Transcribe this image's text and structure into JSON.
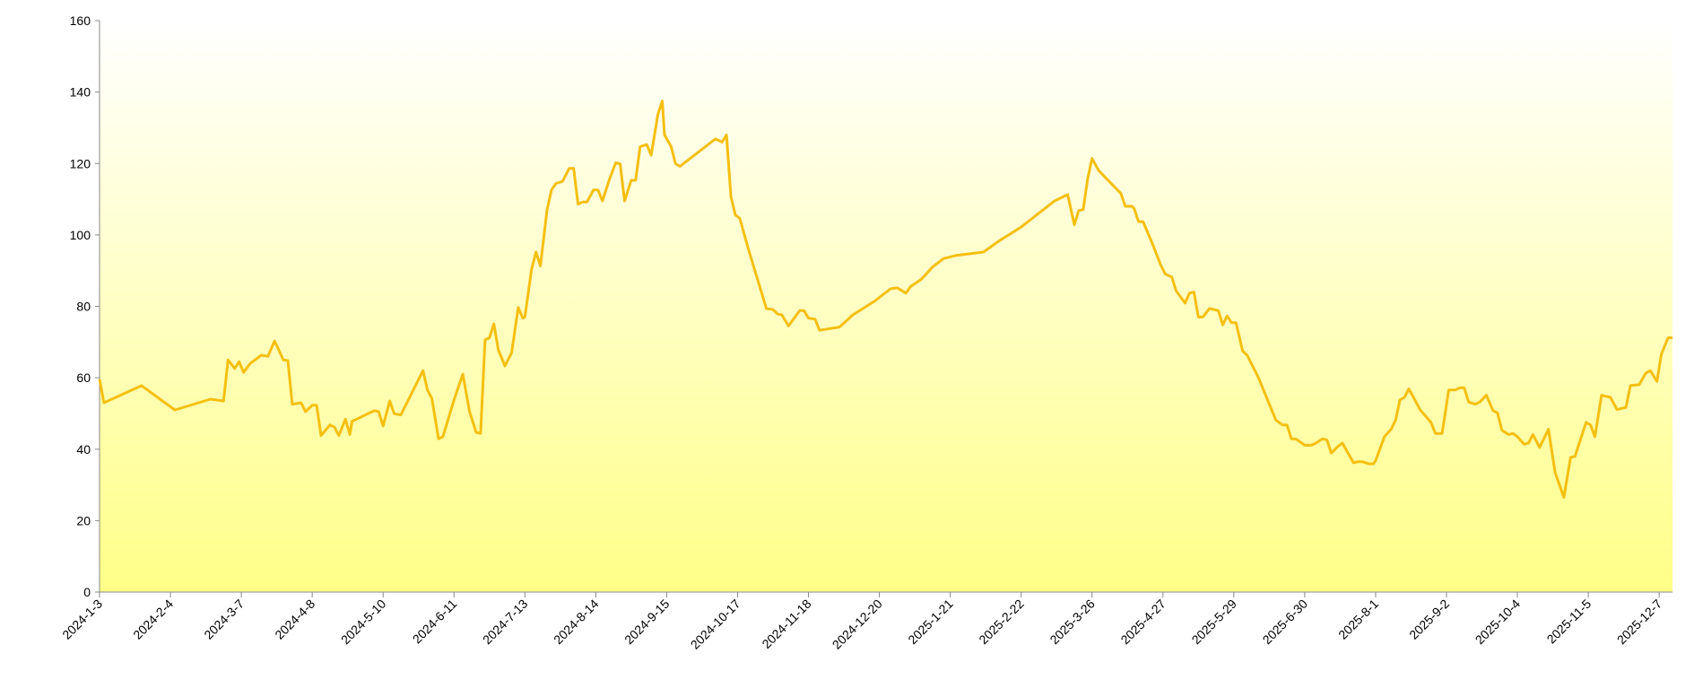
{
  "chart_data": {
    "type": "line",
    "color": "#f5bf10",
    "x": [
      "2024-1-3",
      "2024-1-5",
      "2024-1-22",
      "2024-2-6",
      "2024-2-22",
      "2024-2-28",
      "2024-3-1",
      "2024-3-4",
      "2024-3-6",
      "2024-3-8",
      "2024-3-11",
      "2024-3-16",
      "2024-3-19",
      "2024-3-22",
      "2024-3-26",
      "2024-3-28",
      "2024-3-30",
      "2024-4-3",
      "2024-4-5",
      "2024-4-8",
      "2024-4-10",
      "2024-4-12",
      "2024-4-16",
      "2024-4-18",
      "2024-4-20",
      "2024-4-23",
      "2024-4-25",
      "2024-4-26",
      "2024-5-6",
      "2024-5-8",
      "2024-5-10",
      "2024-5-13",
      "2024-5-15",
      "2024-5-18",
      "2024-5-28",
      "2024-5-30",
      "2024-6-1",
      "2024-6-4",
      "2024-6-6",
      "2024-6-11",
      "2024-6-15",
      "2024-6-18",
      "2024-6-21",
      "2024-6-23",
      "2024-6-25",
      "2024-6-27",
      "2024-6-29",
      "2024-7-1",
      "2024-7-4",
      "2024-7-7",
      "2024-7-10",
      "2024-7-12",
      "2024-7-13",
      "2024-7-16",
      "2024-7-18",
      "2024-7-20",
      "2024-7-23",
      "2024-7-25",
      "2024-7-27",
      "2024-7-30",
      "2024-8-2",
      "2024-8-4",
      "2024-8-6",
      "2024-8-8",
      "2024-8-10",
      "2024-8-13",
      "2024-8-15",
      "2024-8-17",
      "2024-8-20",
      "2024-8-23",
      "2024-8-25",
      "2024-8-27",
      "2024-8-30",
      "2024-9-1",
      "2024-9-3",
      "2024-9-6",
      "2024-9-8",
      "2024-9-11",
      "2024-9-13",
      "2024-9-14",
      "2024-9-17",
      "2024-9-19",
      "2024-9-21",
      "2024-10-7",
      "2024-10-10",
      "2024-10-12",
      "2024-10-14",
      "2024-10-16",
      "2024-10-18",
      "2024-10-22",
      "2024-10-30",
      "2024-11-2",
      "2024-11-4",
      "2024-11-6",
      "2024-11-9",
      "2024-11-14",
      "2024-11-16",
      "2024-11-18",
      "2024-11-21",
      "2024-11-23",
      "2024-12-2",
      "2024-12-8",
      "2024-12-18",
      "2024-12-25",
      "2024-12-28",
      "2025-1-1",
      "2025-1-3",
      "2025-1-8",
      "2025-1-13",
      "2025-1-18",
      "2025-1-24",
      "2025-2-5",
      "2025-2-12",
      "2025-2-22",
      "2025-3-1",
      "2025-3-9",
      "2025-3-15",
      "2025-3-18",
      "2025-3-20",
      "2025-3-22",
      "2025-3-24",
      "2025-3-26",
      "2025-3-29",
      "2025-4-8",
      "2025-4-10",
      "2025-4-13",
      "2025-4-14",
      "2025-4-16",
      "2025-4-18",
      "2025-4-22",
      "2025-4-26",
      "2025-4-28",
      "2025-5-1",
      "2025-5-3",
      "2025-5-7",
      "2025-5-9",
      "2025-5-11",
      "2025-5-13",
      "2025-5-15",
      "2025-5-18",
      "2025-5-22",
      "2025-5-24",
      "2025-5-26",
      "2025-5-28",
      "2025-5-30",
      "2025-6-2",
      "2025-6-4",
      "2025-6-9",
      "2025-6-17",
      "2025-6-20",
      "2025-6-22",
      "2025-6-24",
      "2025-6-26",
      "2025-6-30",
      "2025-7-3",
      "2025-7-5",
      "2025-7-8",
      "2025-7-10",
      "2025-7-12",
      "2025-7-15",
      "2025-7-17",
      "2025-7-22",
      "2025-7-24",
      "2025-7-26",
      "2025-7-29",
      "2025-7-31",
      "2025-8-1",
      "2025-8-5",
      "2025-8-8",
      "2025-8-10",
      "2025-8-12",
      "2025-8-14",
      "2025-8-16",
      "2025-8-19",
      "2025-8-21",
      "2025-8-26",
      "2025-8-28",
      "2025-8-31",
      "2025-9-3",
      "2025-9-6",
      "2025-9-8",
      "2025-9-10",
      "2025-9-12",
      "2025-9-15",
      "2025-9-17",
      "2025-9-20",
      "2025-9-23",
      "2025-9-25",
      "2025-9-27",
      "2025-9-30",
      "2025-10-2",
      "2025-10-4",
      "2025-10-7",
      "2025-10-9",
      "2025-10-11",
      "2025-10-14",
      "2025-10-18",
      "2025-10-21",
      "2025-10-25",
      "2025-10-28",
      "2025-10-30",
      "2025-11-4",
      "2025-11-6",
      "2025-11-8",
      "2025-11-11",
      "2025-11-15",
      "2025-11-18",
      "2025-11-22",
      "2025-11-24",
      "2025-11-28",
      "2025-12-1",
      "2025-12-3",
      "2025-12-6",
      "2025-12-8",
      "2025-12-11",
      "2025-12-13"
    ],
    "values": [
      59.6,
      53,
      57.8,
      51,
      54,
      53.5,
      65,
      62.6,
      64.5,
      61.5,
      64,
      66.3,
      66,
      70.3,
      65,
      64.8,
      52.6,
      53,
      50.5,
      52.3,
      52.3,
      43.8,
      46.8,
      46.2,
      43.8,
      48.4,
      44.1,
      47.8,
      50.8,
      50.5,
      46.5,
      53.5,
      49.9,
      49.6,
      62,
      56.6,
      54.2,
      42.9,
      43.5,
      53.8,
      61,
      50.5,
      44.7,
      44.4,
      70.6,
      71.2,
      75.1,
      67.8,
      63.3,
      67,
      79.7,
      76.7,
      77,
      90.3,
      95.2,
      91.3,
      107,
      112.6,
      114.4,
      115,
      118.6,
      118.6,
      108.6,
      109.2,
      109.2,
      112.6,
      112.6,
      109.5,
      115.3,
      120.2,
      119.9,
      109.5,
      115.3,
      115.3,
      124.7,
      125.3,
      122.3,
      133.6,
      137.5,
      128,
      124.7,
      119.9,
      119.2,
      126.9,
      126,
      128,
      110.7,
      105.6,
      104.6,
      95.8,
      79.4,
      79.1,
      77.9,
      77.6,
      74.5,
      78.8,
      78.8,
      76.7,
      76.4,
      73.3,
      74.2,
      77.6,
      81.5,
      84.9,
      85.2,
      83.7,
      85.5,
      87.6,
      91,
      93.4,
      94.3,
      95.2,
      98.3,
      102.2,
      105.6,
      109.5,
      111.3,
      102.8,
      106.8,
      107.1,
      115.6,
      121.4,
      118,
      111.6,
      108,
      108,
      107.4,
      103.7,
      103.7,
      97.9,
      91.6,
      89.1,
      88.2,
      84.3,
      80.9,
      83.7,
      84,
      77,
      77,
      79.4,
      78.8,
      74.8,
      77.3,
      75.4,
      75.4,
      67.5,
      66.3,
      60.2,
      48.1,
      46.8,
      46.8,
      42.9,
      42.9,
      41.1,
      41.1,
      41.7,
      42.9,
      42.6,
      38.9,
      40.8,
      41.7,
      36.2,
      36.5,
      36.5,
      35.9,
      35.9,
      36.8,
      43.5,
      45.6,
      48.1,
      53.8,
      54.5,
      56.9,
      53.5,
      51.1,
      47.5,
      44.4,
      44.4,
      56.6,
      56.6,
      57.2,
      57.2,
      53.2,
      52.6,
      53.2,
      55.1,
      50.8,
      50.2,
      45.3,
      44.1,
      44.4,
      43.5,
      41.4,
      41.7,
      44.1,
      40.5,
      45.6,
      33.5,
      26.5,
      37.7,
      38,
      47.5,
      46.8,
      43.5,
      55.1,
      54.5,
      51.1,
      51.7,
      57.8,
      58.1,
      61.4,
      62,
      59,
      66.6,
      71.2,
      71.2
    ],
    "xlim": [
      "2024-1-3",
      "2025-12-13"
    ],
    "xticks": [
      "2024-1-3",
      "2024-2-4",
      "2024-3-7",
      "2024-4-8",
      "2024-5-10",
      "2024-6-11",
      "2024-7-13",
      "2024-8-14",
      "2024-9-15",
      "2024-10-17",
      "2024-11-18",
      "2024-12-20",
      "2025-1-21",
      "2025-2-22",
      "2025-3-26",
      "2025-4-27",
      "2025-5-29",
      "2025-6-30",
      "2025-8-1",
      "2025-9-2",
      "2025-10-4",
      "2025-11-5",
      "2025-12-7"
    ],
    "ylim": [
      0,
      160
    ],
    "yticks": [
      0,
      20,
      40,
      60,
      80,
      100,
      120,
      140,
      160
    ]
  }
}
